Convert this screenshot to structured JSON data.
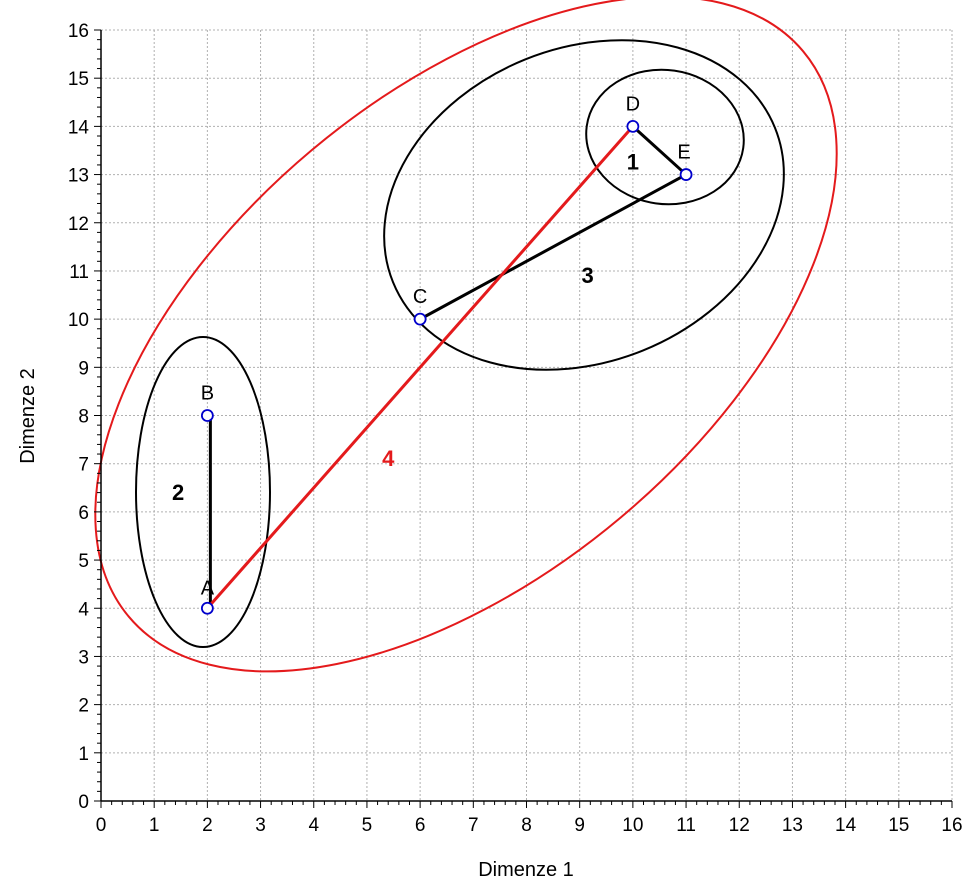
{
  "chart_data": {
    "type": "scatter",
    "title": "",
    "xlabel": "Dimenze 1",
    "ylabel": "Dimenze 2",
    "xlim": [
      0,
      16
    ],
    "ylim": [
      0,
      16
    ],
    "x_ticks": [
      0,
      1,
      2,
      3,
      4,
      5,
      6,
      7,
      8,
      9,
      10,
      11,
      12,
      13,
      14,
      15,
      16
    ],
    "y_ticks": [
      0,
      1,
      2,
      3,
      4,
      5,
      6,
      7,
      8,
      9,
      10,
      11,
      12,
      13,
      14,
      15,
      16
    ],
    "grid": true,
    "points": [
      {
        "label": "A",
        "x": 2,
        "y": 4
      },
      {
        "label": "B",
        "x": 2,
        "y": 8
      },
      {
        "label": "C",
        "x": 6,
        "y": 10
      },
      {
        "label": "D",
        "x": 10,
        "y": 14
      },
      {
        "label": "E",
        "x": 11,
        "y": 13
      }
    ],
    "links": [
      {
        "from": "D",
        "to": "E",
        "color": "#000000"
      },
      {
        "from": "A",
        "to": "B",
        "color": "#000000"
      },
      {
        "from": "C",
        "to": "E",
        "color": "#000000"
      },
      {
        "from": "A",
        "to": "D",
        "color": "#e41a1c"
      }
    ],
    "clusters": [
      {
        "label": "1",
        "color": "#000000",
        "label_x": 10,
        "label_y": 13.1
      },
      {
        "label": "2",
        "color": "#000000",
        "label_x": 1.45,
        "label_y": 6.25
      },
      {
        "label": "3",
        "color": "#000000",
        "label_x": 9.15,
        "label_y": 10.75
      },
      {
        "label": "4",
        "color": "#e41a1c",
        "label_x": 5.4,
        "label_y": 6.95
      }
    ],
    "colors": {
      "point_stroke": "#0000cc",
      "link_black": "#000000",
      "accent_red": "#e41a1c",
      "grid": "#b0b0b0"
    }
  }
}
